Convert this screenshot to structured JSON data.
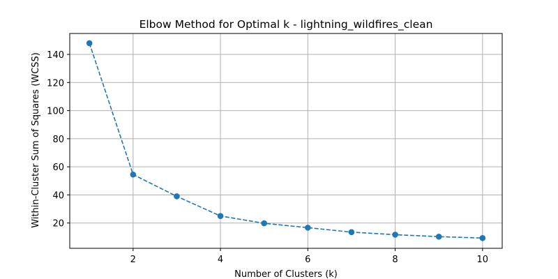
{
  "chart_data": {
    "type": "line",
    "title": "Elbow Method for Optimal k - lightning_wildfires_clean",
    "xlabel": "Number of Clusters (k)",
    "ylabel": "Within-Cluster Sum of Squares (WCSS)",
    "x": [
      1,
      2,
      3,
      4,
      5,
      6,
      7,
      8,
      9,
      10
    ],
    "series": [
      {
        "values": [
          148,
          54.5,
          39,
          25,
          19.8,
          16.7,
          13.5,
          11.7,
          10.3,
          9.3
        ],
        "color": "#1f77b4",
        "line_style": "dashed",
        "marker": "circle"
      }
    ],
    "xticks": [
      2,
      4,
      6,
      8,
      10
    ],
    "yticks": [
      20,
      40,
      60,
      80,
      100,
      120,
      140
    ],
    "xlim": [
      0.55,
      10.45
    ],
    "ylim": [
      2.0,
      154.9
    ],
    "grid": true,
    "legend": false
  }
}
